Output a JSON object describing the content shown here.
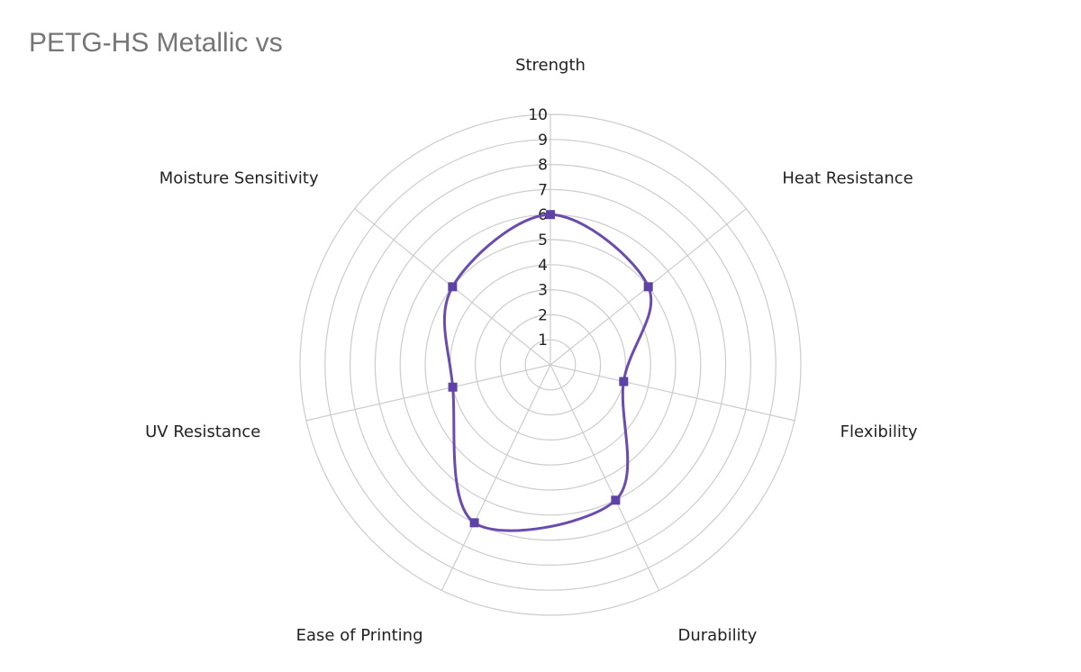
{
  "chart_data": {
    "type": "radar",
    "title": "PETG-HS Metallic vs",
    "axes": [
      "Strength",
      "Heat Resistance",
      "Flexibility",
      "Durability",
      "Ease of Printing",
      "UV Resistance",
      "Moisture Sensitivity"
    ],
    "tick_labels": [
      "1",
      "2",
      "3",
      "4",
      "5",
      "6",
      "7",
      "8",
      "9",
      "10"
    ],
    "range": [
      0,
      10
    ],
    "series": [
      {
        "values": [
          6,
          5,
          3,
          6,
          7,
          4,
          5
        ]
      }
    ],
    "grid": true,
    "curve": "smooth",
    "colors": {
      "series": "#6a4bb0",
      "marker": "#5e43a6",
      "grid": "#cccccc",
      "title": "#757575",
      "text": "#222222"
    }
  }
}
